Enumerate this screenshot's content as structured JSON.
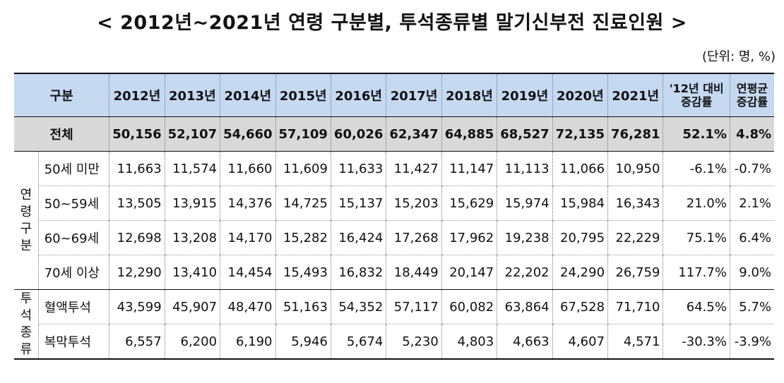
{
  "title": "< 2012년~2021년 연령 구분별, 투석종류별 말기신부전 진료인원 >",
  "unit": "(단위: 명, %)",
  "header": {
    "category": "구분",
    "years": [
      "2012년",
      "2013년",
      "2014년",
      "2015년",
      "2016년",
      "2017년",
      "2018년",
      "2019년",
      "2020년",
      "2021년"
    ],
    "rate_vs_2012": "'12년 대비 증감률",
    "annual_avg_rate": "연평균 증감률"
  },
  "total": {
    "label": "전체",
    "values": [
      "50,156",
      "52,107",
      "54,660",
      "57,109",
      "60,026",
      "62,347",
      "64,885",
      "68,527",
      "72,135",
      "76,281"
    ],
    "rate": "52.1%",
    "avg": "4.8%"
  },
  "age_group": {
    "label": "연령구분",
    "rows": [
      {
        "label": "50세 미만",
        "values": [
          "11,663",
          "11,574",
          "11,660",
          "11,609",
          "11,633",
          "11,427",
          "11,147",
          "11,113",
          "11,066",
          "10,950"
        ],
        "rate": "-6.1%",
        "avg": "-0.7%"
      },
      {
        "label": "50~59세",
        "values": [
          "13,505",
          "13,915",
          "14,376",
          "14,725",
          "15,137",
          "15,203",
          "15,629",
          "15,974",
          "15,984",
          "16,343"
        ],
        "rate": "21.0%",
        "avg": "2.1%"
      },
      {
        "label": "60~69세",
        "values": [
          "12,698",
          "13,208",
          "14,170",
          "15,282",
          "16,424",
          "17,268",
          "17,962",
          "19,238",
          "20,795",
          "22,229"
        ],
        "rate": "75.1%",
        "avg": "6.4%"
      },
      {
        "label": "70세 이상",
        "values": [
          "12,290",
          "13,410",
          "14,454",
          "15,493",
          "16,832",
          "18,449",
          "20,147",
          "22,202",
          "24,290",
          "26,759"
        ],
        "rate": "117.7%",
        "avg": "9.0%"
      }
    ]
  },
  "dialysis_type": {
    "label": "투석종류",
    "rows": [
      {
        "label": "혈액투석",
        "values": [
          "43,599",
          "45,907",
          "48,470",
          "51,163",
          "54,352",
          "57,117",
          "60,082",
          "63,864",
          "67,528",
          "71,710"
        ],
        "rate": "64.5%",
        "avg": "5.7%"
      },
      {
        "label": "복막투석",
        "values": [
          "6,557",
          "6,200",
          "6,190",
          "5,946",
          "5,674",
          "5,230",
          "4,803",
          "4,663",
          "4,607",
          "4,571"
        ],
        "rate": "-30.3%",
        "avg": "-3.9%"
      }
    ]
  }
}
